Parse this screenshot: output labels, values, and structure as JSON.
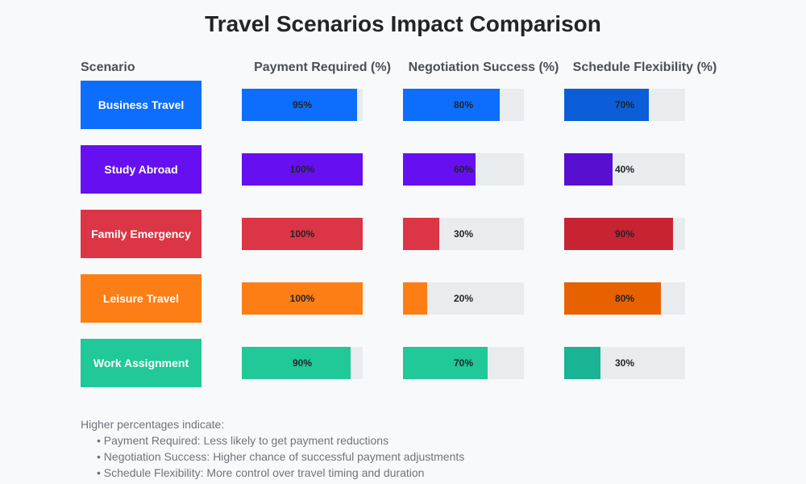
{
  "title": "Travel Scenarios Impact Comparison",
  "headers": {
    "scenario": "Scenario",
    "columns": [
      "Payment Required (%)",
      "Negotiation Success (%)",
      "Schedule Flexibility (%)"
    ]
  },
  "rows": [
    {
      "label": "Business Travel",
      "color": "#0d6efd",
      "values": [
        95,
        80,
        70
      ],
      "value_labels": [
        "95%",
        "80%",
        "70%"
      ],
      "bar_colors": [
        "#0d6efd",
        "#0d6efd",
        "#0b5ed7"
      ]
    },
    {
      "label": "Study Abroad",
      "color": "#6610f2",
      "values": [
        100,
        60,
        40
      ],
      "value_labels": [
        "100%",
        "60%",
        "40%"
      ],
      "bar_colors": [
        "#6610f2",
        "#6610f2",
        "#590fcf"
      ]
    },
    {
      "label": "Family Emergency",
      "color": "#dc3545",
      "values": [
        100,
        30,
        90
      ],
      "value_labels": [
        "100%",
        "30%",
        "90%"
      ],
      "bar_colors": [
        "#dc3545",
        "#dc3545",
        "#c82333"
      ]
    },
    {
      "label": "Leisure Travel",
      "color": "#fd7e14",
      "values": [
        100,
        20,
        80
      ],
      "value_labels": [
        "100%",
        "20%",
        "80%"
      ],
      "bar_colors": [
        "#fd7e14",
        "#fd7e14",
        "#e86100"
      ]
    },
    {
      "label": "Work Assignment",
      "color": "#20c997",
      "values": [
        90,
        70,
        30
      ],
      "value_labels": [
        "90%",
        "70%",
        "30%"
      ],
      "bar_colors": [
        "#20c997",
        "#20c997",
        "#1ab394"
      ]
    }
  ],
  "notes": {
    "intro": "Higher percentages indicate:",
    "items": [
      "• Payment Required: Less likely to get payment reductions",
      "• Negotiation Success: Higher chance of successful payment adjustments",
      "• Schedule Flexibility: More control over travel timing and duration"
    ]
  },
  "colors": {
    "background": "#f8f9fa",
    "track": "#e9ecef",
    "title": "#212529",
    "header": "#495057",
    "notes": "#6c757d"
  },
  "chart_data": {
    "type": "bar",
    "orientation": "horizontal",
    "title": "Travel Scenarios Impact Comparison",
    "categories": [
      "Business Travel",
      "Study Abroad",
      "Family Emergency",
      "Leisure Travel",
      "Work Assignment"
    ],
    "series": [
      {
        "name": "Payment Required (%)",
        "values": [
          95,
          100,
          100,
          100,
          90
        ]
      },
      {
        "name": "Negotiation Success (%)",
        "values": [
          80,
          60,
          30,
          20,
          70
        ]
      },
      {
        "name": "Schedule Flexibility (%)",
        "values": [
          70,
          40,
          90,
          80,
          30
        ]
      }
    ],
    "xlabel": "",
    "ylabel": "Scenario",
    "xlim": [
      0,
      100
    ],
    "grid": false,
    "legend": "column headers"
  }
}
